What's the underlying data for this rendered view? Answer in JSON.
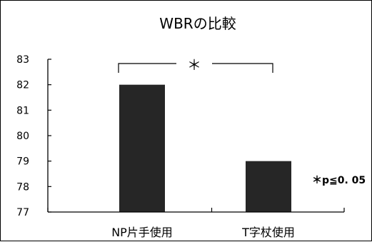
{
  "chart_data": {
    "type": "bar",
    "title": "WBRの比較",
    "categories": [
      "NP片手使用",
      "T字杖使用"
    ],
    "values": [
      82,
      79
    ],
    "ylim": [
      77,
      83
    ],
    "yticks": [
      77,
      78,
      79,
      80,
      81,
      82,
      83
    ],
    "xlabel": "",
    "ylabel": "",
    "grid": false,
    "legend": "none",
    "bar_color": "#262626",
    "significance": {
      "marker": "＊",
      "between": [
        0,
        1
      ],
      "note": "＊p≦0. 05"
    }
  }
}
